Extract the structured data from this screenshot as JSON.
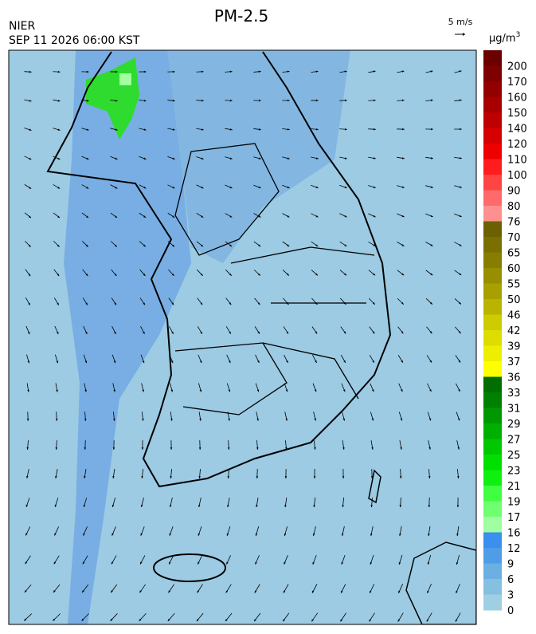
{
  "header": {
    "title": "PM-2.5",
    "agency": "NIER",
    "datetime": "SEP 11 2026 06:00 KST"
  },
  "wind_scale": {
    "label": "5 m/s"
  },
  "legend": {
    "unit": "μg/m",
    "unit_superscript": "3",
    "labels": [
      "200",
      "170",
      "160",
      "150",
      "140",
      "120",
      "110",
      "100",
      "90",
      "80",
      "76",
      "70",
      "65",
      "60",
      "55",
      "50",
      "46",
      "42",
      "39",
      "37",
      "36",
      "33",
      "31",
      "29",
      "27",
      "25",
      "23",
      "21",
      "19",
      "17",
      "16",
      "12",
      "9",
      "6",
      "3",
      "0"
    ],
    "colors": [
      "#6a0000",
      "#7f0000",
      "#940000",
      "#a80000",
      "#bf0000",
      "#d60000",
      "#ee0000",
      "#ff1c1c",
      "#ff4444",
      "#ff6a6a",
      "#ff9090",
      "#6b6100",
      "#7a7000",
      "#877d00",
      "#969000",
      "#a8a000",
      "#bab300",
      "#cccc00",
      "#dddd00",
      "#eeee00",
      "#ffff00",
      "#006e00",
      "#008000",
      "#009800",
      "#00b000",
      "#00c800",
      "#00e000",
      "#10f010",
      "#40ff40",
      "#70ff70",
      "#a0ffa0",
      "#3a8fef",
      "#4f9de8",
      "#6bafe3",
      "#86c0e0",
      "#9fcfe3"
    ]
  }
}
